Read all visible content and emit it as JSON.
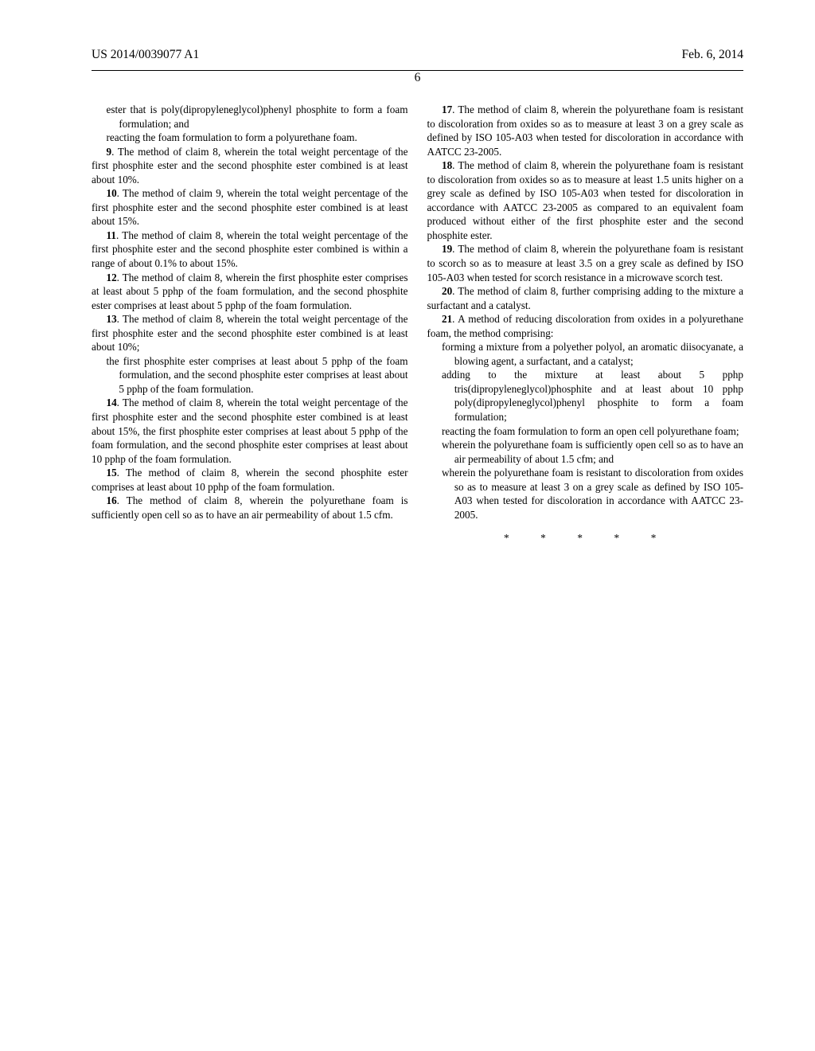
{
  "header": {
    "left": "US 2014/0039077 A1",
    "right": "Feb. 6, 2014",
    "page_number": "6"
  },
  "col1": {
    "p0a": "ester that is poly(dipropyleneglycol)phenyl phosphite to form a foam formulation; and",
    "p0b": "reacting the foam formulation to form a polyurethane foam.",
    "p9": "9. The method of claim 8, wherein the total weight percentage of the first phosphite ester and the second phosphite ester combined is at least about 10%.",
    "p10": "10. The method of claim 9, wherein the total weight percentage of the first phosphite ester and the second phosphite ester combined is at least about 15%.",
    "p11": "11. The method of claim 8, wherein the total weight percentage of the first phosphite ester and the second phosphite ester combined is within a range of about 0.1% to about 15%.",
    "p12": "12. The method of claim 8, wherein the first phosphite ester comprises at least about 5 pphp of the foam formulation, and the second phosphite ester comprises at least about 5 pphp of the foam formulation.",
    "p13a": "13. The method of claim 8, wherein the total weight percentage of the first phosphite ester and the second phosphite ester combined is at least about 10%;",
    "p13b": "the first phosphite ester comprises at least about 5 pphp of the foam formulation, and the second phosphite ester comprises at least about 5 pphp of the foam formulation.",
    "p14": "14. The method of claim 8, wherein the total weight percentage of the first phosphite ester and the second phosphite ester combined is at least about 15%, the first phosphite ester comprises at least about 5 pphp of the foam formulation, and the second phosphite ester comprises at least about 10 pphp of the foam formulation.",
    "p15": "15. The method of claim 8, wherein the second phosphite ester comprises at least about 10 pphp of the foam formulation.",
    "p16": "16. The method of claim 8, wherein the polyurethane foam is sufficiently open cell so as to have an air permeability of about 1.5 cfm."
  },
  "col2": {
    "p17": "17. The method of claim 8, wherein the polyurethane foam is resistant to discoloration from oxides so as to measure at least 3 on a grey scale as defined by ISO 105-A03 when tested for discoloration in accordance with AATCC 23-2005.",
    "p18": "18. The method of claim 8, wherein the polyurethane foam is resistant to discoloration from oxides so as to measure at least 1.5 units higher on a grey scale as defined by ISO 105-A03 when tested for discoloration in accordance with AATCC 23-2005 as compared to an equivalent foam produced without either of the first phosphite ester and the second phosphite ester.",
    "p19": "19. The method of claim 8, wherein the polyurethane foam is resistant to scorch so as to measure at least 3.5 on a grey scale as defined by ISO 105-A03 when tested for scorch resistance in a microwave scorch test.",
    "p20": "20. The method of claim 8, further comprising adding to the mixture a surfactant and a catalyst.",
    "p21a": "21. A method of reducing discoloration from oxides in a polyurethane foam, the method comprising:",
    "p21b": "forming a mixture from a polyether polyol, an aromatic diisocyanate, a blowing agent, a surfactant, and a catalyst;",
    "p21c": "adding to the mixture at least about 5 pphp tris(dipropyleneglycol)phosphite and at least about 10 pphp poly(dipropyleneglycol)phenyl phosphite to form a foam formulation;",
    "p21d": "reacting the foam formulation to form an open cell polyurethane foam;",
    "p21e": "wherein the polyurethane foam is sufficiently open cell so as to have an air permeability of about 1.5 cfm; and",
    "p21f": "wherein the polyurethane foam is resistant to discoloration from oxides so as to measure at least 3 on a grey scale as defined by ISO 105-A03 when tested for discoloration in accordance with AATCC 23-2005."
  },
  "labels": {
    "n9": "9",
    "n10": "10",
    "n11": "11",
    "n12": "12",
    "n13": "13",
    "n14": "14",
    "n15": "15",
    "n16": "16",
    "n17": "17",
    "n18": "18",
    "n19": "19",
    "n20": "20",
    "n21": "21"
  },
  "stars": "* * * * *"
}
